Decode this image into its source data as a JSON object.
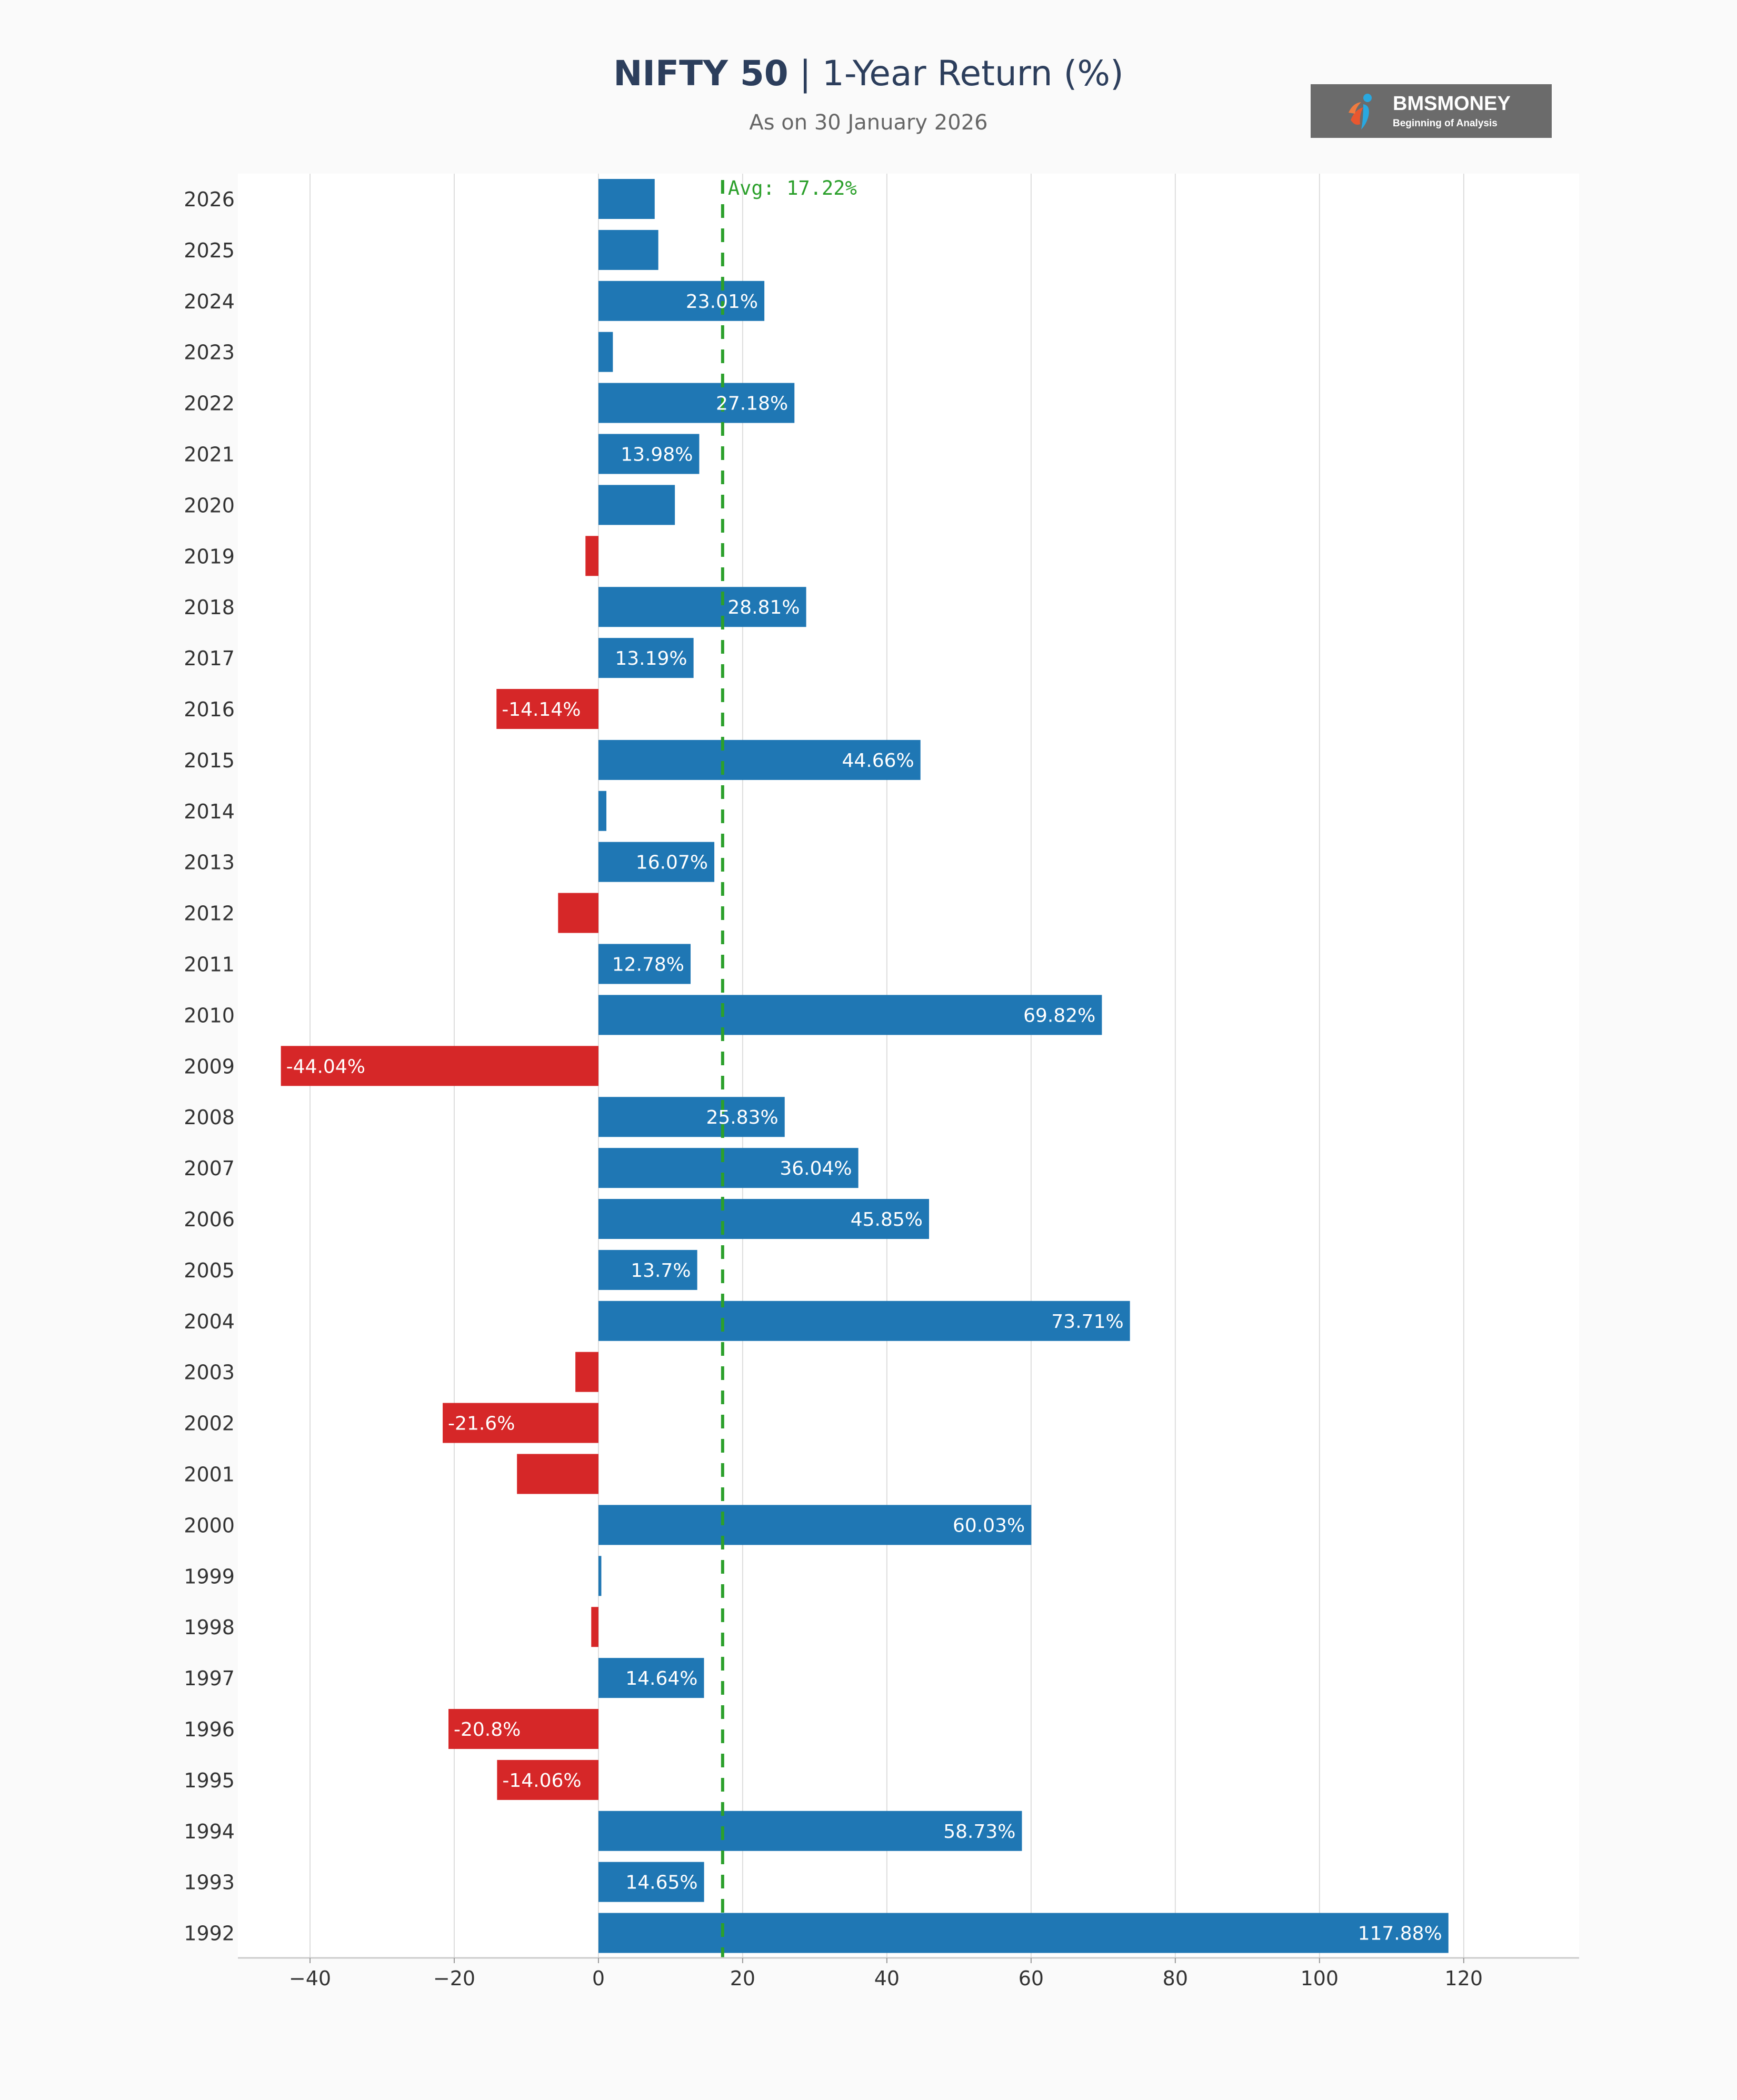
{
  "chart_title_bold": "NIFTY 50",
  "chart_title_sep": " | ",
  "chart_title_rest": "1-Year Return (%)",
  "chart_subtitle": "As on 30 January 2026",
  "logo": {
    "brand": "BMSMONEY",
    "tagline": "Beginning of Analysis"
  },
  "colors": {
    "positive": "#1f77b4",
    "negative": "#d62728",
    "average": "#2ca02c",
    "grid": "#dddddd",
    "axis": "#cccccc"
  },
  "chart_data": {
    "type": "bar",
    "orientation": "horizontal",
    "title": "NIFTY 50 | 1-Year Return (%)",
    "subtitle": "As on 30 January 2026",
    "xlabel": "",
    "ylabel": "",
    "xlim": [
      -50,
      136
    ],
    "xticks": [
      -40,
      -20,
      0,
      20,
      40,
      60,
      80,
      100,
      120
    ],
    "xtick_labels": [
      "−40",
      "−20",
      "0",
      "20",
      "40",
      "60",
      "80",
      "100",
      "120"
    ],
    "grid": "vertical",
    "average": {
      "value": 17.22,
      "label": "Avg: 17.22%"
    },
    "categories": [
      "2026",
      "2025",
      "2024",
      "2023",
      "2022",
      "2021",
      "2020",
      "2019",
      "2018",
      "2017",
      "2016",
      "2015",
      "2014",
      "2013",
      "2012",
      "2011",
      "2010",
      "2009",
      "2008",
      "2007",
      "2006",
      "2005",
      "2004",
      "2003",
      "2002",
      "2001",
      "2000",
      "1999",
      "1998",
      "1997",
      "1996",
      "1995",
      "1994",
      "1993",
      "1992"
    ],
    "values": [
      7.8,
      8.3,
      23.01,
      2.0,
      27.18,
      13.98,
      10.6,
      -1.8,
      28.81,
      13.19,
      -14.14,
      44.66,
      1.1,
      16.07,
      -5.6,
      12.78,
      69.82,
      -44.04,
      25.83,
      36.04,
      45.85,
      13.7,
      73.71,
      -3.2,
      -21.6,
      -11.3,
      60.03,
      0.4,
      -1.0,
      14.64,
      -20.8,
      -14.06,
      58.73,
      14.65,
      117.88
    ],
    "data_labels": [
      "",
      "",
      "23.01%",
      "",
      "27.18%",
      "13.98%",
      "",
      "",
      "28.81%",
      "13.19%",
      "-14.14%",
      "44.66%",
      "",
      "16.07%",
      "",
      "12.78%",
      "69.82%",
      "-44.04%",
      "25.83%",
      "36.04%",
      "45.85%",
      "13.7%",
      "73.71%",
      "",
      "-21.6%",
      "",
      "60.03%",
      "",
      "",
      "14.64%",
      "-20.8%",
      "-14.06%",
      "58.73%",
      "14.65%",
      "117.88%"
    ]
  }
}
